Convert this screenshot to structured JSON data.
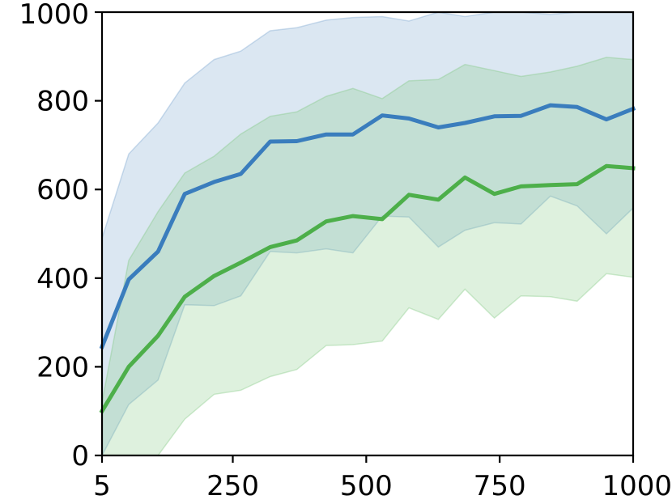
{
  "chart_data": {
    "type": "line",
    "title": "",
    "xlabel": "",
    "ylabel": "",
    "xlim": [
      5,
      1000
    ],
    "ylim": [
      0,
      1000
    ],
    "x_ticks": [
      5,
      250,
      500,
      750,
      1000
    ],
    "y_ticks": [
      0,
      200,
      400,
      600,
      800,
      1000
    ],
    "x_tick_labels": [
      "5",
      "250",
      "500",
      "750",
      "1000"
    ],
    "y_tick_labels": [
      "0",
      "200",
      "400",
      "600",
      "800",
      "1000"
    ],
    "grid": false,
    "x": [
      5,
      55,
      110,
      160,
      215,
      265,
      320,
      370,
      425,
      475,
      530,
      580,
      635,
      685,
      740,
      790,
      845,
      895,
      950,
      1000
    ],
    "series": [
      {
        "color": "#3a7dbd",
        "band_color": "#6f9fcc",
        "values": [
          245,
          397,
          460,
          590,
          617,
          635,
          708,
          709,
          724,
          724,
          767,
          760,
          740,
          750,
          765,
          766,
          790,
          786,
          758,
          782
        ],
        "upper": [
          490,
          680,
          750,
          840,
          893,
          912,
          958,
          965,
          982,
          988,
          990,
          980,
          1000,
          990,
          1000,
          1000,
          995,
          1000,
          1000,
          1000
        ],
        "lower": [
          0,
          115,
          170,
          340,
          338,
          360,
          460,
          457,
          466,
          457,
          540,
          538,
          470,
          508,
          525,
          522,
          585,
          563,
          500,
          558
        ]
      },
      {
        "color": "#4daf4a",
        "band_color": "#7cc67a",
        "values": [
          100,
          200,
          270,
          358,
          405,
          435,
          470,
          485,
          528,
          540,
          533,
          588,
          577,
          627,
          590,
          607,
          610,
          612,
          653,
          648
        ],
        "upper": [
          120,
          440,
          550,
          637,
          675,
          725,
          765,
          775,
          810,
          828,
          805,
          845,
          848,
          882,
          868,
          855,
          865,
          878,
          898,
          893
        ],
        "lower": [
          0,
          0,
          0,
          82,
          138,
          147,
          178,
          194,
          248,
          250,
          258,
          333,
          307,
          375,
          310,
          360,
          358,
          348,
          410,
          402
        ]
      }
    ]
  }
}
